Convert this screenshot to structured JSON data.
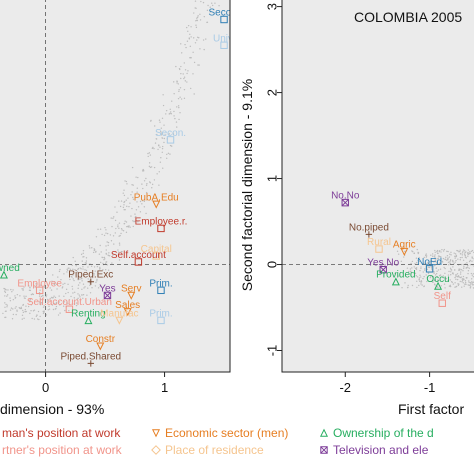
{
  "chart_data": [
    {
      "type": "scatter",
      "panel": "left",
      "title": "",
      "xlabel": "dimension - 93%",
      "ylabel": "",
      "xlim": [
        -0.4,
        1.55
      ],
      "ylim": [
        -1.25,
        3.1
      ],
      "xticks": [
        0,
        1
      ],
      "grid": true,
      "reference_lines": {
        "x": 0,
        "y": 0
      },
      "points": [
        {
          "label": "Secon.",
          "x": 1.5,
          "y": 2.85,
          "color": "#2f7fb5",
          "marker": "o"
        },
        {
          "label": "Univ.",
          "x": 1.5,
          "y": 2.55,
          "color": "#a9cbe6",
          "marker": "o"
        },
        {
          "label": "Secon.",
          "x": 1.05,
          "y": 1.45,
          "color": "#a9cbe6",
          "marker": "o"
        },
        {
          "label": "PubA.Edu",
          "x": 0.93,
          "y": 0.7,
          "color": "#e67e22",
          "marker": "v"
        },
        {
          "label": "Employee.r.",
          "x": 0.97,
          "y": 0.42,
          "color": "#c0392b",
          "marker": "o"
        },
        {
          "label": "Capital",
          "x": 0.93,
          "y": 0.1,
          "color": "#f5c58f",
          "marker": "o"
        },
        {
          "label": "Self.account",
          "x": 0.78,
          "y": 0.03,
          "color": "#c0392b",
          "marker": "o"
        },
        {
          "label": "Owned",
          "x": -0.35,
          "y": -0.12,
          "color": "#27ae60",
          "marker": "^"
        },
        {
          "label": "Piped.Exc",
          "x": 0.38,
          "y": -0.2,
          "color": "#7a4a32",
          "marker": "+"
        },
        {
          "label": "Employee",
          "x": -0.05,
          "y": -0.3,
          "color": "#f1948a",
          "marker": "o"
        },
        {
          "label": "Yes",
          "x": 0.52,
          "y": -0.36,
          "color": "#7d3c98",
          "marker": "x"
        },
        {
          "label": "Serv",
          "x": 0.72,
          "y": -0.36,
          "color": "#e67e22",
          "marker": "v"
        },
        {
          "label": "Prim.",
          "x": 0.97,
          "y": -0.3,
          "color": "#2f7fb5",
          "marker": "o"
        },
        {
          "label": "Self.account.Urban",
          "x": 0.2,
          "y": -0.52,
          "color": "#f1948a",
          "marker": "o"
        },
        {
          "label": "Sales",
          "x": 0.69,
          "y": -0.55,
          "color": "#e67e22",
          "marker": "v"
        },
        {
          "label": "Renting",
          "x": 0.36,
          "y": -0.65,
          "color": "#27ae60",
          "marker": "^"
        },
        {
          "label": "Manufac",
          "x": 0.62,
          "y": -0.65,
          "color": "#f5c58f",
          "marker": "v"
        },
        {
          "label": "Prim.",
          "x": 0.97,
          "y": -0.65,
          "color": "#a9cbe6",
          "marker": "o"
        },
        {
          "label": "Constr",
          "x": 0.46,
          "y": -0.95,
          "color": "#e67e22",
          "marker": "v"
        },
        {
          "label": "Piped.Shared",
          "x": 0.38,
          "y": -1.15,
          "color": "#7a4a32",
          "marker": "+"
        }
      ]
    },
    {
      "type": "scatter",
      "panel": "right",
      "title": "COLOMBIA 2005",
      "xlabel": "First factor",
      "ylabel": "Second factorial dimension - 9.1%",
      "xlim": [
        -2.75,
        -0.45
      ],
      "ylim": [
        -1.25,
        3.1
      ],
      "xticks": [
        -2,
        -1
      ],
      "yticks": [
        -1,
        0,
        1,
        2,
        3
      ],
      "grid": true,
      "reference_lines": {
        "y": 0
      },
      "points": [
        {
          "label": "No.No",
          "x": -2.0,
          "y": 0.72,
          "color": "#7d3c98",
          "marker": "x"
        },
        {
          "label": "No.piped",
          "x": -1.72,
          "y": 0.35,
          "color": "#7a4a32",
          "marker": "+"
        },
        {
          "label": "Rural",
          "x": -1.6,
          "y": 0.18,
          "color": "#f5c58f",
          "marker": "o"
        },
        {
          "label": "Agric",
          "x": -1.3,
          "y": 0.15,
          "color": "#e67e22",
          "marker": "v"
        },
        {
          "label": "Yes.No",
          "x": -1.55,
          "y": -0.06,
          "color": "#7d3c98",
          "marker": "x"
        },
        {
          "label": "NoEd",
          "x": -1.0,
          "y": -0.05,
          "color": "#2f7fb5",
          "marker": "o"
        },
        {
          "label": "Provided",
          "x": -1.4,
          "y": -0.2,
          "color": "#27ae60",
          "marker": "^"
        },
        {
          "label": "Occu",
          "x": -0.9,
          "y": -0.25,
          "color": "#27ae60",
          "marker": "^"
        },
        {
          "label": "Self",
          "x": -0.85,
          "y": -0.45,
          "color": "#f1948a",
          "marker": "o"
        }
      ]
    }
  ],
  "legend": [
    {
      "text": "man's position at work",
      "color": "#c0392b",
      "marker": "o"
    },
    {
      "text": "Economic sector (men)",
      "color": "#e67e22",
      "marker": "v"
    },
    {
      "text": "Ownership of the d",
      "color": "#27ae60",
      "marker": "^"
    },
    {
      "text": "rtner's position at work",
      "color": "#f1948a",
      "marker": "o"
    },
    {
      "text": "Place of residence",
      "color": "#f5c58f",
      "marker": "diamond"
    },
    {
      "text": "Television and ele",
      "color": "#7d3c98",
      "marker": "x"
    }
  ],
  "colors": {
    "panel_bg": "#ebebeb",
    "cloud": "#bdbdbd",
    "frame": "#222222"
  }
}
